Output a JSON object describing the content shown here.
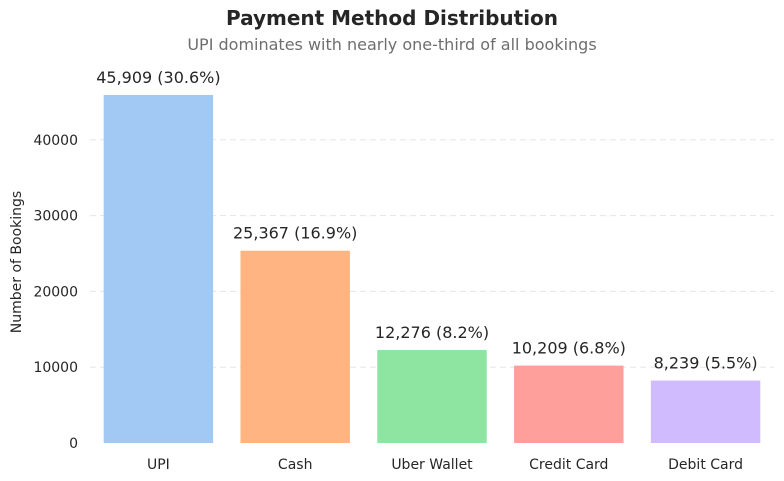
{
  "chart_data": {
    "type": "bar",
    "title": "Payment Method Distribution",
    "subtitle": "UPI dominates with nearly one-third of all bookings",
    "xlabel": "",
    "ylabel": "Number of Bookings",
    "categories": [
      "UPI",
      "Cash",
      "Uber Wallet",
      "Credit Card",
      "Debit Card"
    ],
    "values": [
      45909,
      25367,
      12276,
      10209,
      8239
    ],
    "data_labels": [
      "45,909 (30.6%)",
      "25,367 (16.9%)",
      "12,276 (8.2%)",
      "10,209 (6.8%)",
      "8,239 (5.5%)"
    ],
    "colors": [
      "#a1c9f4",
      "#ffb482",
      "#8de5a1",
      "#ff9f9b",
      "#d0bbff"
    ],
    "ylim": [
      0,
      45909
    ],
    "yticks": [
      0,
      10000,
      20000,
      30000,
      40000
    ],
    "grid": "y-dashed",
    "legend": "none"
  }
}
